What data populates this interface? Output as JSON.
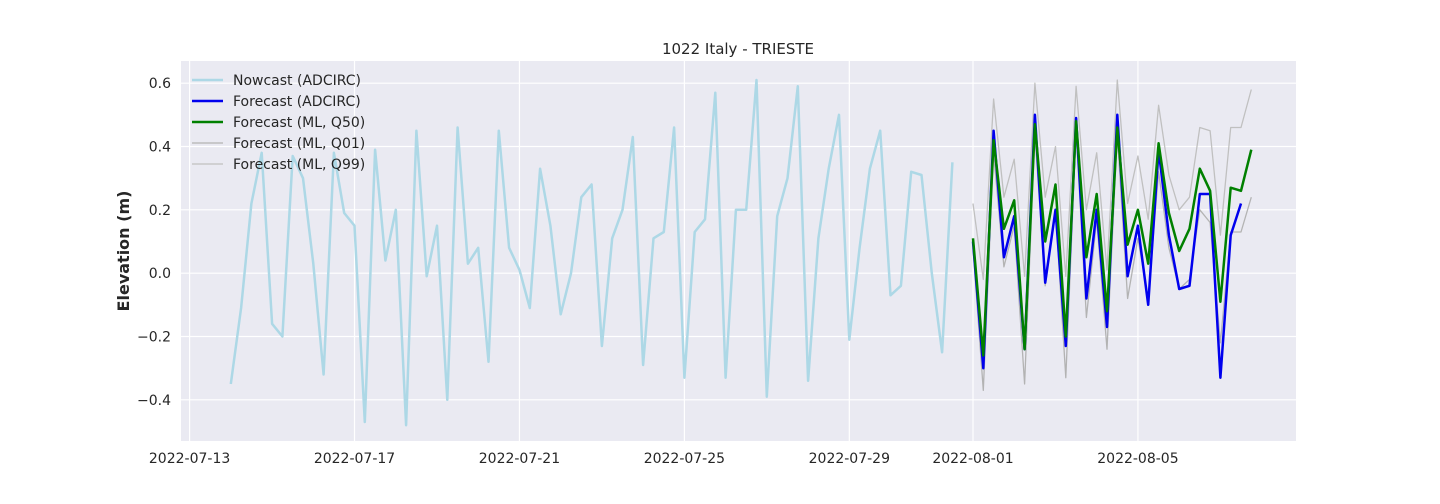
{
  "chart_data": {
    "type": "line",
    "title": "1022 Italy - TRIESTE",
    "xlabel": "",
    "ylabel": "Elevation (m)",
    "x_type": "date",
    "xlim": [
      "2022-07-12T19:00",
      "2022-08-08T20:00"
    ],
    "ylim": [
      -0.53,
      0.67
    ],
    "x_ticks": [
      "2022-07-13",
      "2022-07-17",
      "2022-07-21",
      "2022-07-25",
      "2022-07-29",
      "2022-08-01",
      "2022-08-05"
    ],
    "y_ticks": [
      -0.4,
      -0.2,
      0.0,
      0.2,
      0.4,
      0.6
    ],
    "y_tick_labels": [
      "−0.4",
      "−0.2",
      "0.0",
      "0.2",
      "0.4",
      "0.6"
    ],
    "grid": true,
    "legend_position": "top-left",
    "background": "#eaeaf2",
    "series": [
      {
        "name": "Nowcast (ADCIRC)",
        "color": "#add8e6",
        "width": 2.5,
        "x": [
          "2022-07-14T00:00",
          "2022-07-14T06:00",
          "2022-07-14T12:00",
          "2022-07-14T18:00",
          "2022-07-15T00:00",
          "2022-07-15T06:00",
          "2022-07-15T12:00",
          "2022-07-15T18:00",
          "2022-07-16T00:00",
          "2022-07-16T06:00",
          "2022-07-16T12:00",
          "2022-07-16T18:00",
          "2022-07-17T00:00",
          "2022-07-17T06:00",
          "2022-07-17T12:00",
          "2022-07-17T18:00",
          "2022-07-18T00:00",
          "2022-07-18T06:00",
          "2022-07-18T12:00",
          "2022-07-18T18:00",
          "2022-07-19T00:00",
          "2022-07-19T06:00",
          "2022-07-19T12:00",
          "2022-07-19T18:00",
          "2022-07-20T00:00",
          "2022-07-20T06:00",
          "2022-07-20T12:00",
          "2022-07-20T18:00",
          "2022-07-21T00:00",
          "2022-07-21T06:00",
          "2022-07-21T12:00",
          "2022-07-21T18:00",
          "2022-07-22T00:00",
          "2022-07-22T06:00",
          "2022-07-22T12:00",
          "2022-07-22T18:00",
          "2022-07-23T00:00",
          "2022-07-23T06:00",
          "2022-07-23T12:00",
          "2022-07-23T18:00",
          "2022-07-24T00:00",
          "2022-07-24T06:00",
          "2022-07-24T12:00",
          "2022-07-24T18:00",
          "2022-07-25T00:00",
          "2022-07-25T06:00",
          "2022-07-25T12:00",
          "2022-07-25T18:00",
          "2022-07-26T00:00",
          "2022-07-26T06:00",
          "2022-07-26T12:00",
          "2022-07-26T18:00",
          "2022-07-27T00:00",
          "2022-07-27T06:00",
          "2022-07-27T12:00",
          "2022-07-27T18:00",
          "2022-07-28T00:00",
          "2022-07-28T06:00",
          "2022-07-28T12:00",
          "2022-07-28T18:00",
          "2022-07-29T00:00",
          "2022-07-29T06:00",
          "2022-07-29T12:00",
          "2022-07-29T18:00",
          "2022-07-30T00:00",
          "2022-07-30T06:00",
          "2022-07-30T12:00",
          "2022-07-30T18:00",
          "2022-07-31T00:00",
          "2022-07-31T06:00",
          "2022-07-31T12:00"
        ],
        "y": [
          -0.35,
          -0.11,
          0.22,
          0.38,
          -0.16,
          -0.2,
          0.37,
          0.3,
          0.03,
          -0.32,
          0.38,
          0.19,
          0.15,
          -0.47,
          0.39,
          0.04,
          0.2,
          -0.48,
          0.45,
          -0.01,
          0.15,
          -0.4,
          0.46,
          0.03,
          0.08,
          -0.28,
          0.45,
          0.08,
          0.01,
          -0.11,
          0.33,
          0.15,
          -0.13,
          0.0,
          0.24,
          0.28,
          -0.23,
          0.11,
          0.2,
          0.43,
          -0.29,
          0.11,
          0.13,
          0.46,
          -0.33,
          0.13,
          0.17,
          0.57,
          -0.33,
          0.2,
          0.2,
          0.61,
          -0.39,
          0.18,
          0.3,
          0.59,
          -0.34,
          0.11,
          0.33,
          0.5,
          -0.21,
          0.08,
          0.33,
          0.45,
          -0.07,
          -0.04,
          0.32,
          0.31,
          0.0,
          -0.25,
          0.35
        ]
      },
      {
        "name": "Forecast (ADCIRC)",
        "color": "#0000ee",
        "width": 2.5,
        "x": [
          "2022-08-01T00:00",
          "2022-08-01T06:00",
          "2022-08-01T12:00",
          "2022-08-01T18:00",
          "2022-08-02T00:00",
          "2022-08-02T06:00",
          "2022-08-02T12:00",
          "2022-08-02T18:00",
          "2022-08-03T00:00",
          "2022-08-03T06:00",
          "2022-08-03T12:00",
          "2022-08-03T18:00",
          "2022-08-04T00:00",
          "2022-08-04T06:00",
          "2022-08-04T12:00",
          "2022-08-04T18:00",
          "2022-08-05T00:00",
          "2022-08-05T06:00",
          "2022-08-05T12:00",
          "2022-08-05T18:00",
          "2022-08-06T00:00",
          "2022-08-06T06:00",
          "2022-08-06T12:00",
          "2022-08-06T18:00",
          "2022-08-07T00:00",
          "2022-08-07T06:00",
          "2022-08-07T12:00",
          "2022-08-07T18:00"
        ],
        "y": [
          0.1,
          -0.3,
          0.45,
          0.05,
          0.18,
          -0.24,
          0.5,
          -0.03,
          0.2,
          -0.23,
          0.49,
          -0.08,
          0.2,
          -0.17,
          0.5,
          -0.01,
          0.15,
          -0.1,
          0.39,
          0.12,
          -0.05,
          -0.04,
          0.25,
          0.25,
          -0.33,
          0.12,
          0.22,
          null
        ]
      },
      {
        "name": "Forecast (ML, Q50)",
        "color": "#008000",
        "width": 2.5,
        "x": [
          "2022-08-01T00:00",
          "2022-08-01T06:00",
          "2022-08-01T12:00",
          "2022-08-01T18:00",
          "2022-08-02T00:00",
          "2022-08-02T06:00",
          "2022-08-02T12:00",
          "2022-08-02T18:00",
          "2022-08-03T00:00",
          "2022-08-03T06:00",
          "2022-08-03T12:00",
          "2022-08-03T18:00",
          "2022-08-04T00:00",
          "2022-08-04T06:00",
          "2022-08-04T12:00",
          "2022-08-04T18:00",
          "2022-08-05T00:00",
          "2022-08-05T06:00",
          "2022-08-05T12:00",
          "2022-08-05T18:00",
          "2022-08-06T00:00",
          "2022-08-06T06:00",
          "2022-08-06T12:00",
          "2022-08-06T18:00",
          "2022-08-07T00:00",
          "2022-08-07T06:00",
          "2022-08-07T12:00",
          "2022-08-07T18:00"
        ],
        "y": [
          0.11,
          -0.26,
          0.42,
          0.14,
          0.23,
          -0.24,
          0.47,
          0.1,
          0.28,
          -0.2,
          0.48,
          0.05,
          0.25,
          -0.12,
          0.46,
          0.09,
          0.2,
          0.03,
          0.41,
          0.19,
          0.07,
          0.14,
          0.33,
          0.26,
          -0.09,
          0.27,
          0.26,
          0.39
        ]
      },
      {
        "name": "Forecast (ML, Q01)",
        "color": "#b3b3b3",
        "width": 1.3,
        "x": [
          "2022-08-01T00:00",
          "2022-08-01T06:00",
          "2022-08-01T12:00",
          "2022-08-01T18:00",
          "2022-08-02T00:00",
          "2022-08-02T06:00",
          "2022-08-02T12:00",
          "2022-08-02T18:00",
          "2022-08-03T00:00",
          "2022-08-03T06:00",
          "2022-08-03T12:00",
          "2022-08-03T18:00",
          "2022-08-04T00:00",
          "2022-08-04T06:00",
          "2022-08-04T12:00",
          "2022-08-04T18:00",
          "2022-08-05T00:00",
          "2022-08-05T06:00",
          "2022-08-05T12:00",
          "2022-08-05T18:00",
          "2022-08-06T00:00",
          "2022-08-06T06:00",
          "2022-08-06T12:00",
          "2022-08-06T18:00",
          "2022-08-07T00:00",
          "2022-08-07T06:00",
          "2022-08-07T12:00",
          "2022-08-07T18:00"
        ],
        "y": [
          0.08,
          -0.37,
          0.38,
          0.02,
          0.15,
          -0.35,
          0.44,
          -0.04,
          0.2,
          -0.33,
          0.45,
          -0.14,
          0.17,
          -0.24,
          0.44,
          -0.08,
          0.11,
          -0.08,
          0.32,
          0.08,
          -0.05,
          -0.02,
          0.2,
          0.16,
          -0.22,
          0.13,
          0.13,
          0.24
        ]
      },
      {
        "name": "Forecast (ML, Q99)",
        "color": "#c0c0c0",
        "width": 1.3,
        "x": [
          "2022-08-01T00:00",
          "2022-08-01T06:00",
          "2022-08-01T12:00",
          "2022-08-01T18:00",
          "2022-08-02T00:00",
          "2022-08-02T06:00",
          "2022-08-02T12:00",
          "2022-08-02T18:00",
          "2022-08-03T00:00",
          "2022-08-03T06:00",
          "2022-08-03T12:00",
          "2022-08-03T18:00",
          "2022-08-04T00:00",
          "2022-08-04T06:00",
          "2022-08-04T12:00",
          "2022-08-04T18:00",
          "2022-08-05T00:00",
          "2022-08-05T06:00",
          "2022-08-05T12:00",
          "2022-08-05T18:00",
          "2022-08-06T00:00",
          "2022-08-06T06:00",
          "2022-08-06T12:00",
          "2022-08-06T18:00",
          "2022-08-07T00:00",
          "2022-08-07T06:00",
          "2022-08-07T12:00",
          "2022-08-07T18:00"
        ],
        "y": [
          0.22,
          -0.02,
          0.55,
          0.24,
          0.36,
          -0.01,
          0.6,
          0.24,
          0.4,
          -0.01,
          0.59,
          0.2,
          0.38,
          0.01,
          0.61,
          0.22,
          0.37,
          0.17,
          0.53,
          0.31,
          0.2,
          0.24,
          0.46,
          0.45,
          0.12,
          0.46,
          0.46,
          0.58
        ]
      }
    ]
  }
}
